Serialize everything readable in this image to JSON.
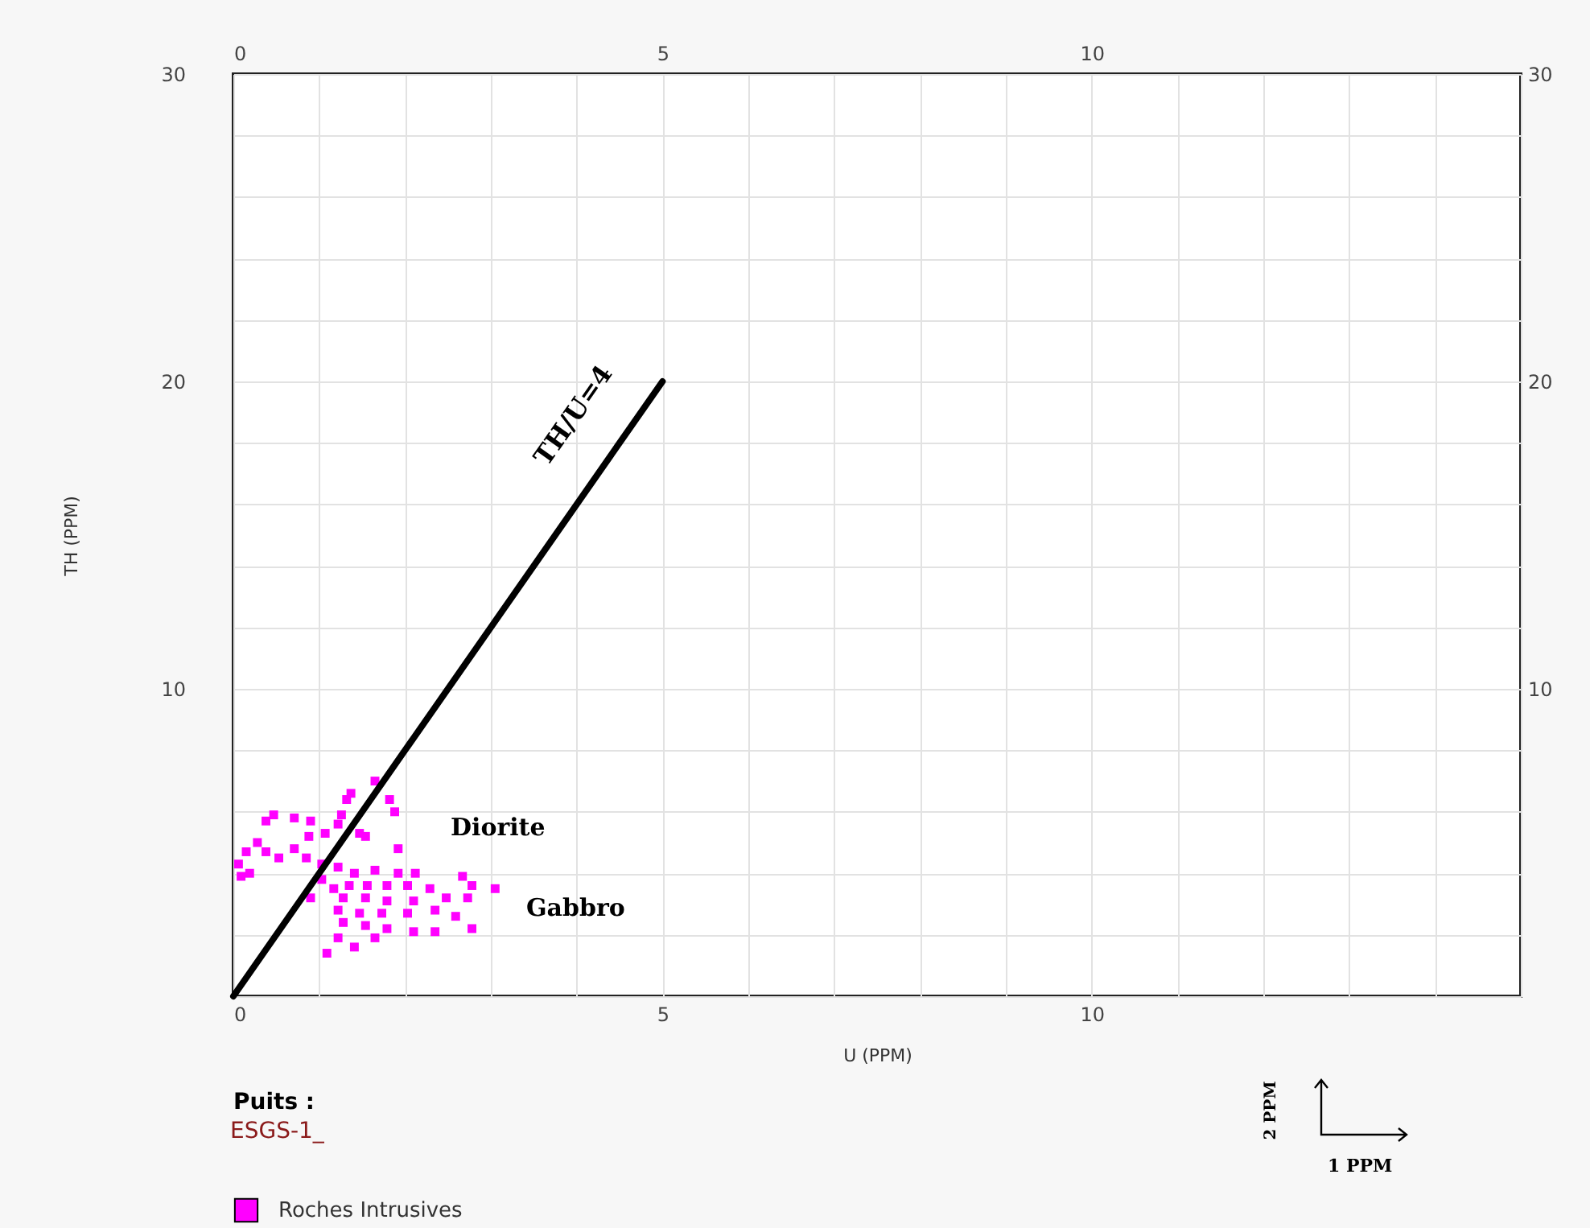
{
  "chart_data": {
    "type": "scatter",
    "xlabel": "U (PPM)",
    "ylabel": "TH (PPM)",
    "legend_title": "Puits :",
    "xlim": [
      0,
      15
    ],
    "xticks": [
      0,
      {
        "value": 1,
        "label": null
      },
      {
        "value": 2,
        "label": null
      },
      {
        "value": 3,
        "label": null
      },
      {
        "value": 4,
        "label": null
      },
      5,
      {
        "value": 6,
        "label": null
      },
      {
        "value": 7,
        "label": null
      },
      {
        "value": 8,
        "label": null
      },
      {
        "value": 9,
        "label": null
      },
      10,
      {
        "value": 11,
        "label": null
      },
      {
        "value": 12,
        "label": null
      },
      {
        "value": 13,
        "label": null
      },
      {
        "value": 14,
        "label": null
      },
      {
        "value": 15,
        "label": null
      }
    ],
    "ylim": [
      0,
      30
    ],
    "yticks": [
      {
        "value": 0,
        "label": null
      },
      {
        "value": 2,
        "label": null
      },
      {
        "value": 4,
        "label": null
      },
      {
        "value": 6,
        "label": null
      },
      {
        "value": 8,
        "label": null
      },
      10,
      {
        "value": 12,
        "label": null
      },
      {
        "value": 14,
        "label": null
      },
      {
        "value": 16,
        "label": null
      },
      {
        "value": 18,
        "label": null
      },
      20,
      {
        "value": 22,
        "label": null
      },
      {
        "value": 24,
        "label": null
      },
      {
        "value": 26,
        "label": null
      },
      {
        "value": 28,
        "label": null
      },
      30
    ],
    "x2lim": [
      0,
      15
    ],
    "x2ticks": [
      0,
      5,
      10
    ],
    "y2lim": [
      0,
      30
    ],
    "y2ticks": [
      10,
      20,
      30
    ],
    "grid": true,
    "legend": "bottom left",
    "series": [
      {
        "name": "Roches Intrusives",
        "color": "#ff00ff",
        "type": "scatter",
        "marker": "square",
        "x": [
          1.65,
          1.37,
          1.82,
          1.32,
          0.47,
          0.38,
          0.71,
          0.9,
          1.26,
          1.22,
          1.47,
          1.88,
          1.54,
          1.07,
          0.88,
          0.28,
          0.15,
          0.38,
          0.71,
          0.53,
          1.92,
          0.85,
          1.03,
          0.06,
          0.19,
          0.09,
          1.22,
          1.41,
          1.65,
          1.92,
          2.12,
          2.67,
          3.05,
          2.78,
          1.03,
          1.17,
          1.35,
          1.56,
          1.79,
          2.03,
          2.29,
          0.9,
          1.28,
          1.54,
          1.79,
          2.1,
          2.48,
          2.73,
          2.35,
          2.03,
          1.73,
          1.47,
          1.22,
          2.59,
          1.28,
          1.54,
          1.79,
          2.1,
          2.35,
          2.78,
          1.22,
          1.65,
          1.41,
          1.09
        ],
        "values": [
          7.0,
          6.6,
          6.4,
          6.4,
          5.9,
          5.7,
          5.8,
          5.7,
          5.9,
          5.6,
          5.3,
          6.0,
          5.2,
          5.3,
          5.2,
          5.0,
          4.7,
          4.7,
          4.8,
          4.5,
          4.8,
          4.5,
          4.3,
          4.3,
          4.0,
          3.9,
          4.2,
          4.0,
          4.1,
          4.0,
          4.0,
          3.9,
          3.5,
          3.6,
          3.8,
          3.5,
          3.6,
          3.6,
          3.6,
          3.6,
          3.5,
          3.2,
          3.2,
          3.2,
          3.1,
          3.1,
          3.2,
          3.2,
          2.8,
          2.7,
          2.7,
          2.7,
          2.8,
          2.6,
          2.4,
          2.3,
          2.2,
          2.1,
          2.1,
          2.2,
          1.9,
          1.9,
          1.6,
          1.4
        ]
      },
      {
        "type": "line",
        "color": "#000000",
        "x": [
          0,
          5
        ],
        "values": [
          0,
          20
        ]
      }
    ],
    "annotations": [
      "TH/U=4",
      "Diorite",
      "Gabbro",
      "ESGS-1_",
      "2 PPM",
      "1 PPM"
    ]
  }
}
